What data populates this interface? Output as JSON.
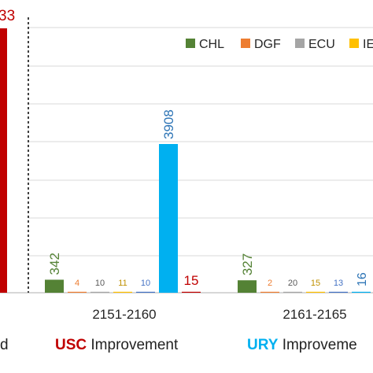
{
  "chart_data": {
    "type": "bar",
    "categories": [
      "2151-2160",
      "2161-2165"
    ],
    "series": [
      {
        "name": "CHL",
        "color": "#548235",
        "values": [
          342,
          327
        ]
      },
      {
        "name": "DGF",
        "color": "#ED7D31",
        "values": [
          4,
          2
        ]
      },
      {
        "name": "ECU",
        "color": "#A5A5A5",
        "values": [
          10,
          20
        ]
      },
      {
        "name": "IE",
        "color": "#FFC000",
        "values": [
          11,
          15
        ]
      },
      {
        "name": "",
        "color": "#4472C4",
        "values": [
          10,
          13
        ]
      },
      {
        "name": "",
        "color": "#00B0F0",
        "values": [
          3908,
          16
        ]
      },
      {
        "name": "",
        "color": "#C00000",
        "values": [
          15,
          null
        ]
      }
    ],
    "value_label_colors": [
      "#548235",
      "#ED7D31",
      "#595959",
      "#BF9000",
      "#4472C4",
      "#2E75B6",
      "#C00000"
    ],
    "left_partial": {
      "label": "33",
      "color": "#C00000"
    },
    "legend_labels": [
      "CHL",
      "DGF",
      "ECU",
      "IE"
    ],
    "grid": true,
    "legend_position": "top-right"
  },
  "bottom_legend": [
    {
      "key": "",
      "word": "d",
      "color": "#222222"
    },
    {
      "key": "USC",
      "word": "Improvement",
      "color": "#C00000"
    },
    {
      "key": "URY",
      "word": "Improveme",
      "color": "#00B0F0"
    }
  ]
}
